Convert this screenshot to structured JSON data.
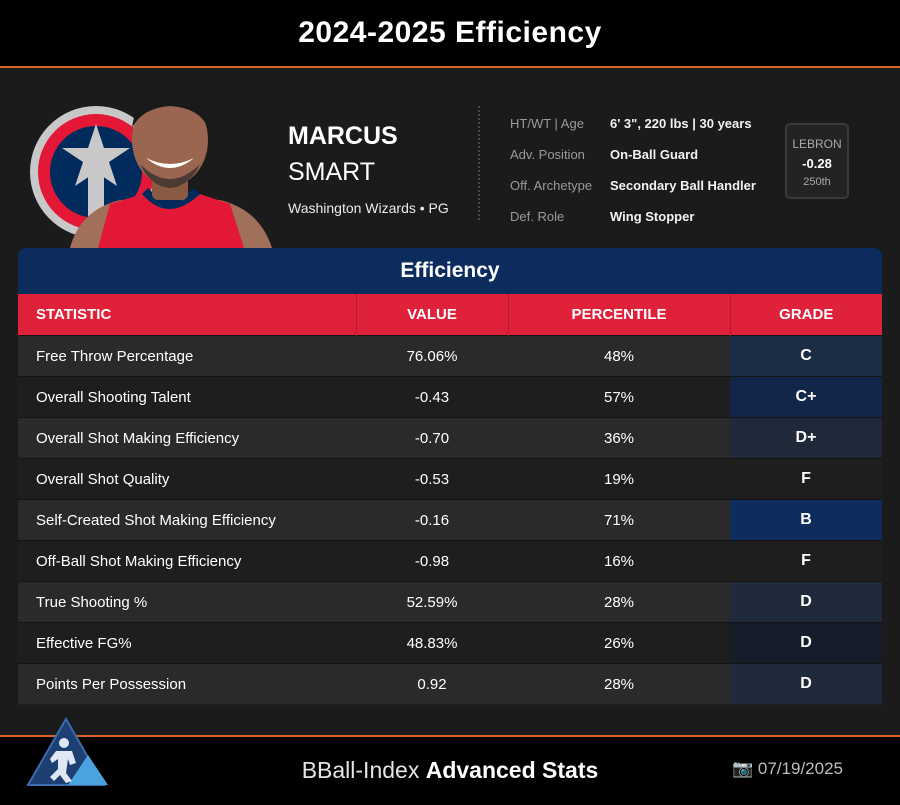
{
  "header_bar": {
    "title": "2024-2025 Efficiency"
  },
  "player": {
    "first_name": "MARCUS",
    "last_name": "SMART",
    "team_position": "Washington Wizards • PG",
    "team_colors": {
      "red": "#e31837",
      "navy": "#002b5c"
    }
  },
  "info": [
    {
      "label": "HT/WT | Age",
      "value": "6' 3\", 220 lbs | 30 years"
    },
    {
      "label": "Adv. Position",
      "value": "On-Ball Guard"
    },
    {
      "label": "Off. Archetype",
      "value": "Secondary Ball Handler"
    },
    {
      "label": "Def. Role",
      "value": "Wing Stopper"
    }
  ],
  "lebron": {
    "label": "LEBRON",
    "value": "-0.28",
    "percentile": "250th"
  },
  "panel": {
    "title": "Efficiency",
    "columns": [
      "STATISTIC",
      "VALUE",
      "PERCENTILE",
      "GRADE"
    ],
    "rows": [
      {
        "stat": "Free Throw Percentage",
        "value": "76.06%",
        "percentile": "48%",
        "grade": "C",
        "grade_color": "#1b2c45"
      },
      {
        "stat": "Overall Shooting Talent",
        "value": "-0.43",
        "percentile": "57%",
        "grade": "C+",
        "grade_color": "#12264a"
      },
      {
        "stat": "Overall Shot Making Efficiency",
        "value": "-0.70",
        "percentile": "36%",
        "grade": "D+",
        "grade_color": "#20293a"
      },
      {
        "stat": "Overall Shot Quality",
        "value": "-0.53",
        "percentile": "19%",
        "grade": "F",
        "grade_color": "#1e1e1e"
      },
      {
        "stat": "Self-Created Shot Making Efficiency",
        "value": "-0.16",
        "percentile": "71%",
        "grade": "B",
        "grade_color": "#0f2d5c"
      },
      {
        "stat": "Off-Ball Shot Making Efficiency",
        "value": "-0.98",
        "percentile": "16%",
        "grade": "F",
        "grade_color": "#1e1e1e"
      },
      {
        "stat": "True Shooting %",
        "value": "52.59%",
        "percentile": "28%",
        "grade": "D",
        "grade_color": "#1f2a3b"
      },
      {
        "stat": "Effective FG%",
        "value": "48.83%",
        "percentile": "26%",
        "grade": "D",
        "grade_color": "#151d2b"
      },
      {
        "stat": "Points Per Possession",
        "value": "0.92",
        "percentile": "28%",
        "grade": "D",
        "grade_color": "#1f2a3b"
      }
    ]
  },
  "footer": {
    "brand_light": "BBall-Index",
    "brand_bold": "Advanced Stats",
    "date_icon": "camera-icon",
    "date": "07/19/2025"
  }
}
